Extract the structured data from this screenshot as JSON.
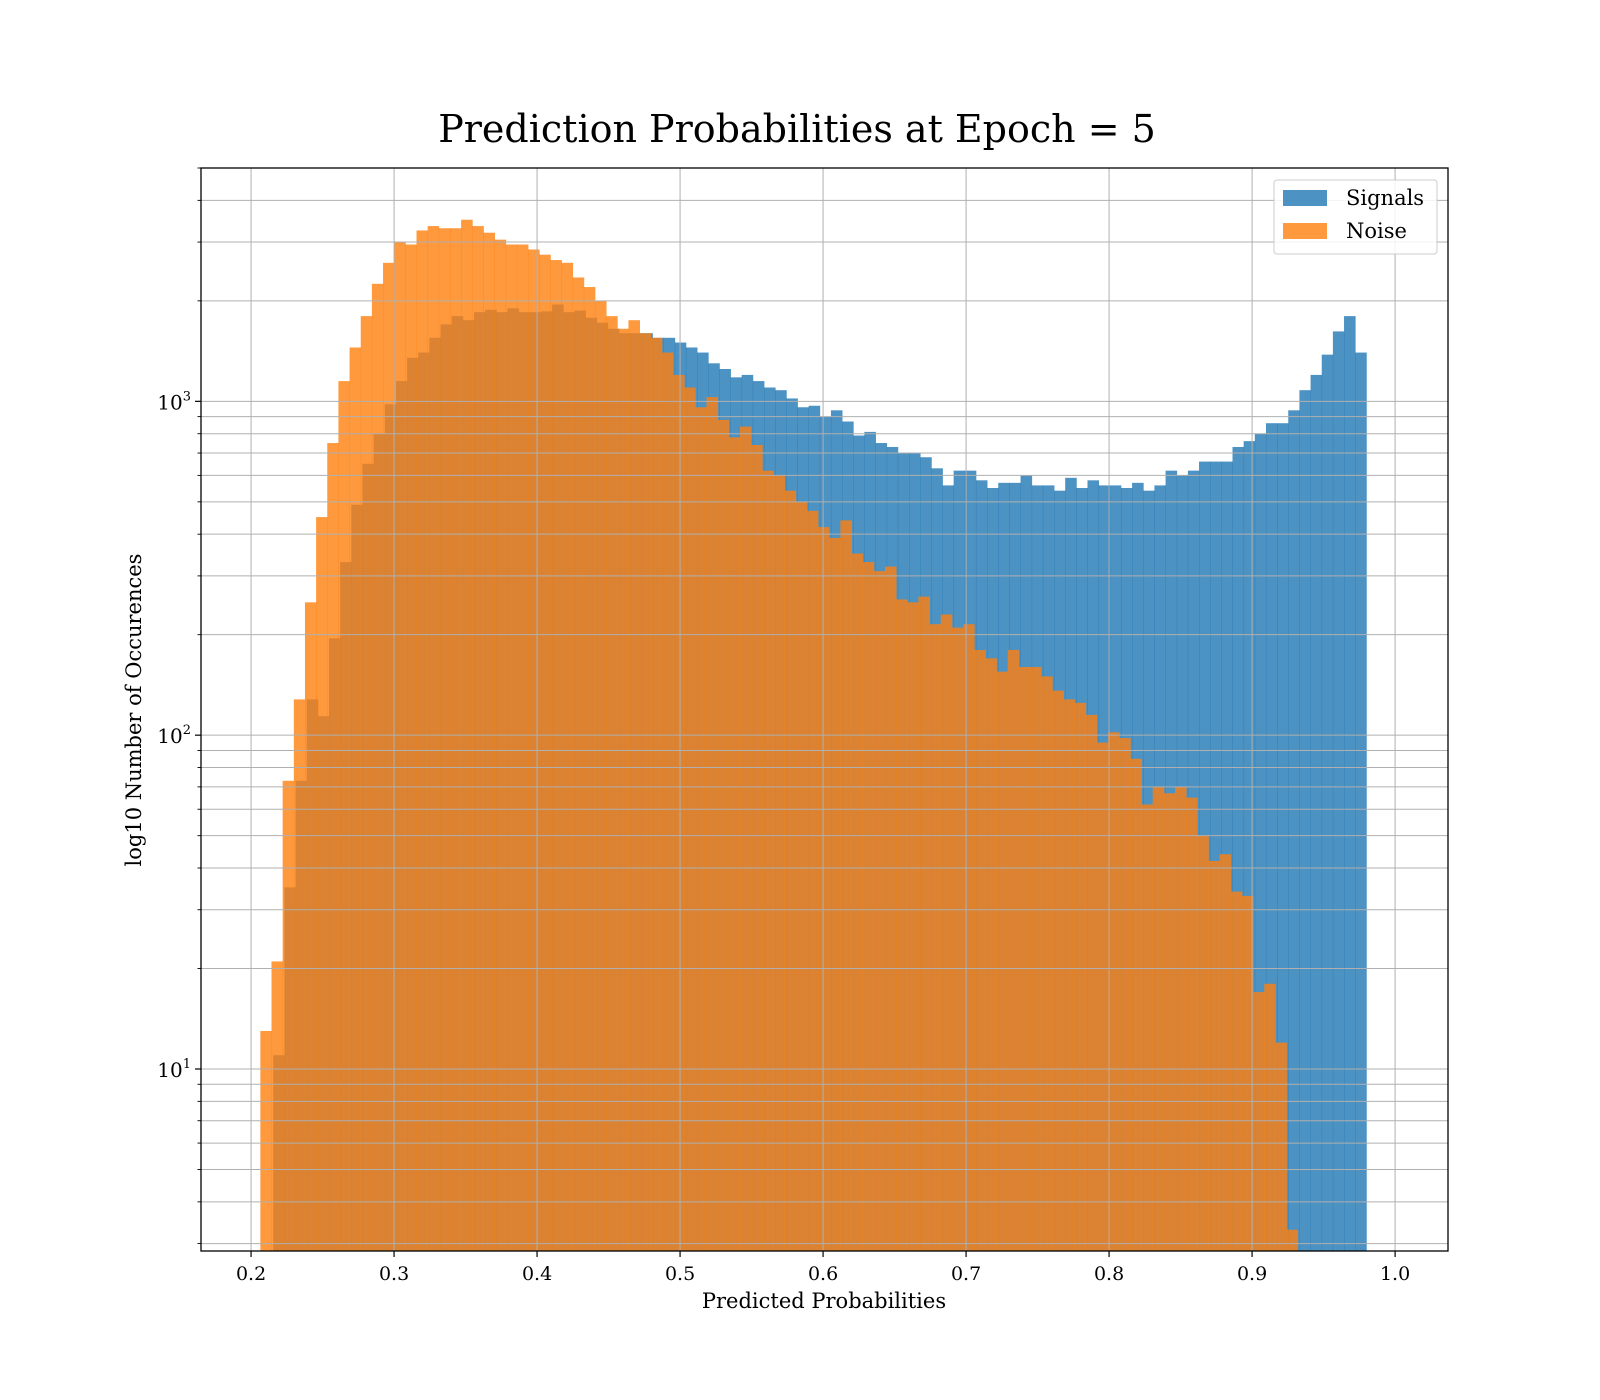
{
  "chart_data": {
    "type": "bar",
    "title": "Prediction Probabilities at Epoch = 5",
    "xlabel": "Predicted Probabilities",
    "ylabel": "log10 Number of Occurences",
    "xlim": [
      0.165,
      1.037
    ],
    "ylim": [
      2.85,
      5000
    ],
    "yscale": "log",
    "grid": true,
    "legend_position": "top-right",
    "x_ticks": [
      "0.2",
      "0.3",
      "0.4",
      "0.5",
      "0.6",
      "0.7",
      "0.8",
      "0.9",
      "1.0"
    ],
    "y_ticks": [
      {
        "base": "10",
        "exp": "1"
      },
      {
        "base": "10",
        "exp": "2"
      },
      {
        "base": "10",
        "exp": "3"
      }
    ],
    "bin_width": 0.0078,
    "series": [
      {
        "name": "Signals",
        "color": "#1f77b4",
        "bin_start": 0.2155,
        "values": [
          11,
          35,
          73,
          128,
          114,
          195,
          330,
          490,
          650,
          800,
          980,
          1150,
          1350,
          1400,
          1550,
          1700,
          1800,
          1750,
          1850,
          1880,
          1850,
          1900,
          1850,
          1850,
          1860,
          1950,
          1850,
          1870,
          1780,
          1720,
          1650,
          1600,
          1600,
          1600,
          1550,
          1550,
          1500,
          1450,
          1400,
          1300,
          1250,
          1180,
          1200,
          1150,
          1100,
          1080,
          1020,
          960,
          970,
          900,
          940,
          870,
          790,
          810,
          750,
          730,
          700,
          700,
          680,
          630,
          560,
          620,
          620,
          580,
          550,
          570,
          570,
          600,
          560,
          560,
          540,
          590,
          550,
          580,
          560,
          560,
          550,
          570,
          540,
          560,
          620,
          600,
          620,
          660,
          660,
          660,
          730,
          760,
          800,
          860,
          860,
          940,
          1080,
          1200,
          1380,
          1620,
          1800,
          1400
        ]
      },
      {
        "name": "Noise",
        "color": "#ff7f0e",
        "bin_start": 0.2065,
        "values": [
          13,
          21,
          73,
          128,
          250,
          450,
          750,
          1150,
          1450,
          1800,
          2250,
          2600,
          3000,
          2950,
          3250,
          3350,
          3300,
          3300,
          3500,
          3350,
          3200,
          3050,
          2950,
          2950,
          2850,
          2750,
          2650,
          2600,
          2350,
          2200,
          2000,
          1800,
          1650,
          1750,
          1600,
          1550,
          1400,
          1200,
          1100,
          960,
          1030,
          880,
          780,
          840,
          740,
          620,
          600,
          540,
          500,
          470,
          420,
          390,
          440,
          350,
          330,
          310,
          320,
          255,
          250,
          260,
          215,
          230,
          210,
          215,
          180,
          170,
          155,
          180,
          160,
          160,
          150,
          136,
          128,
          125,
          115,
          95,
          102,
          98,
          85,
          62,
          70,
          67,
          70,
          65,
          50,
          42,
          44,
          34,
          33,
          17,
          18,
          12,
          3.3
        ]
      }
    ]
  }
}
